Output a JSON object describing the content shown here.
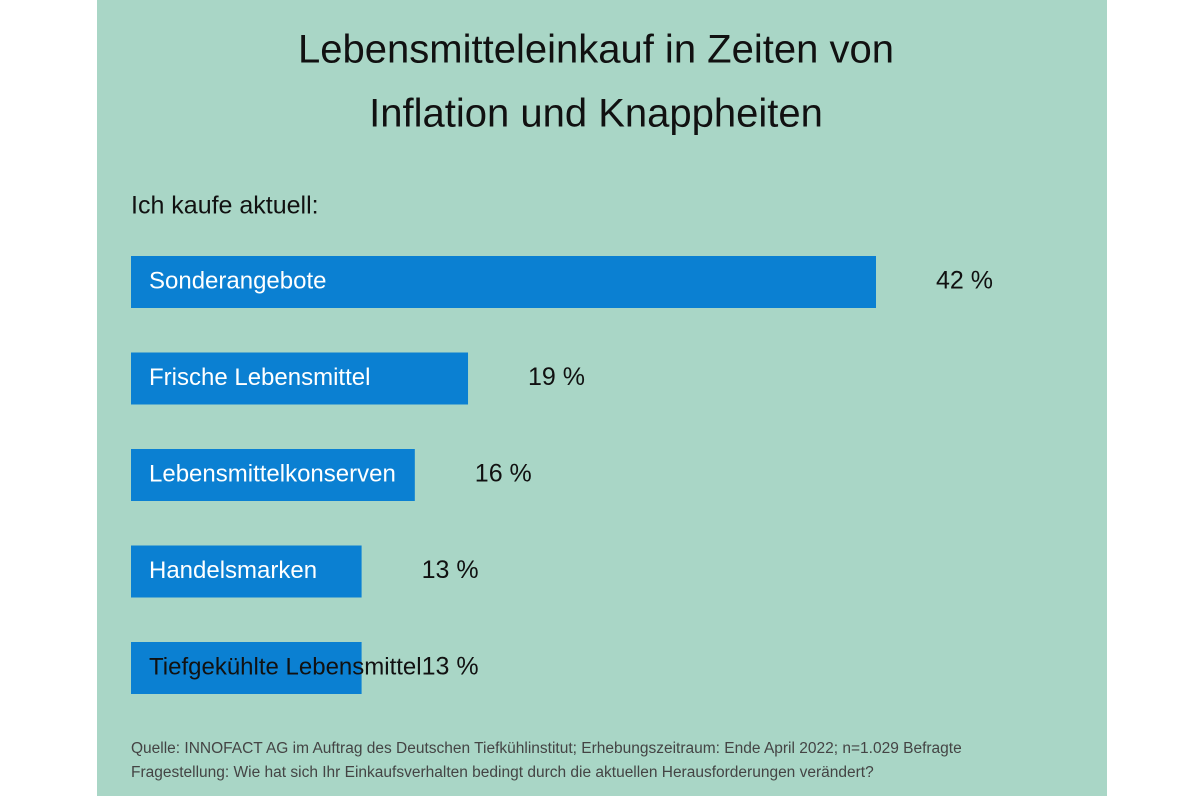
{
  "chart_data": {
    "type": "bar",
    "orientation": "horizontal",
    "title": [
      "Lebensmitteleinkauf in Zeiten von",
      "Inflation und Knappheiten"
    ],
    "subtitle": "Ich kaufe aktuell:",
    "categories": [
      "Sonderangebote",
      "Frische Lebensmittel",
      "Lebensmittelkonserven",
      "Handelsmarken",
      "Tiefgekühlte Lebensmittel"
    ],
    "values": [
      42,
      19,
      16,
      13,
      13
    ],
    "value_labels": [
      "42 %",
      "19 %",
      "16 %",
      "13 %",
      "13 %"
    ],
    "color": "#0b80d2",
    "notes": [
      "Quelle: INNOFACT AG im Auftrag des Deutschen Tiefkühlinstitut; Erhebungszeitraum: Ende April 2022; n=1.029 Befragte",
      "Fragestellung: Wie hat sich Ihr Einkaufsverhalten bedingt durch die aktuellen Herausforderungen verändert?"
    ]
  }
}
